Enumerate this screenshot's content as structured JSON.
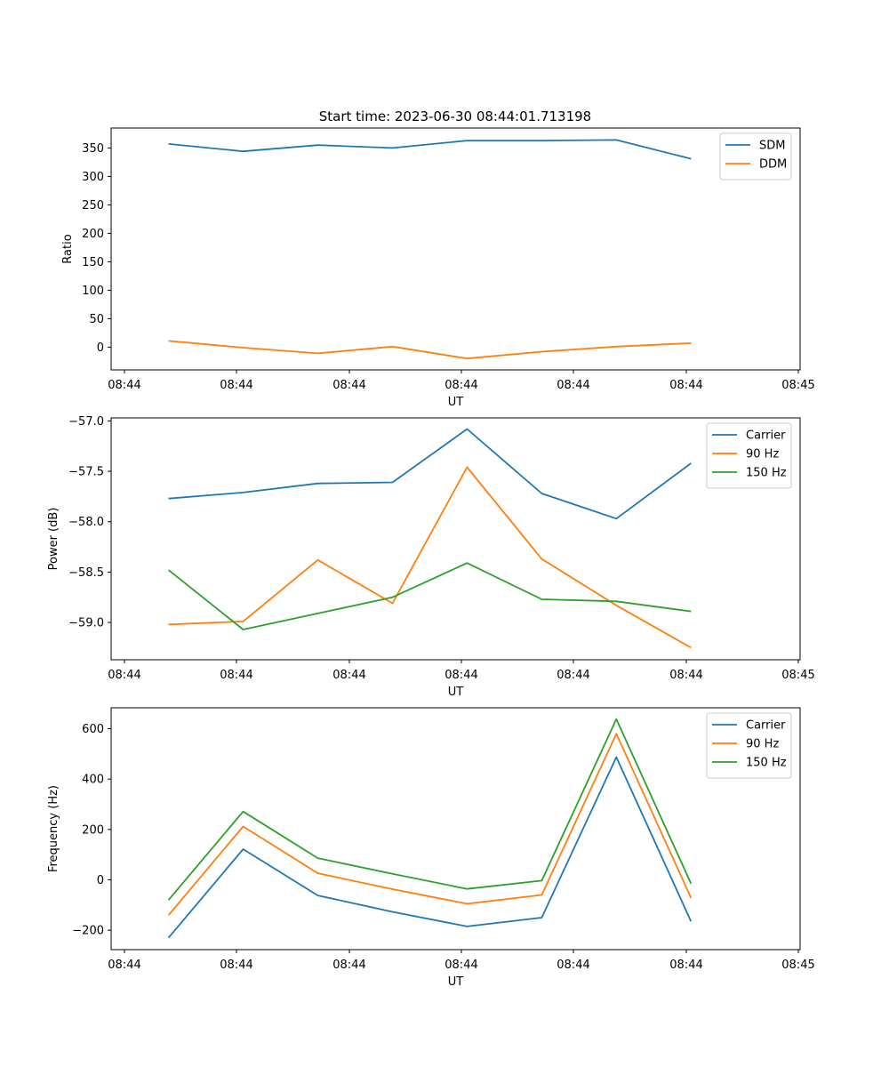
{
  "figure_title": "Start time: 2023-06-30 08:44:01.713198",
  "chart_data": [
    {
      "type": "line",
      "title": "Start time: 2023-06-30 08:44:01.713198",
      "xlabel": "UT",
      "ylabel": "Ratio",
      "x_tick_labels": [
        "08:44",
        "08:44",
        "08:44",
        "08:44",
        "08:44",
        "08:44",
        "08:44",
        "08:45"
      ],
      "y_ticks": [
        0,
        50,
        100,
        150,
        200,
        250,
        300,
        350
      ],
      "ylim": [
        -40,
        385
      ],
      "legend_position": "top-right",
      "grid": false,
      "x_point_positions": [
        0.5,
        1.15,
        1.8,
        2.45,
        3.1,
        3.75,
        4.4,
        5.05
      ],
      "x_range": [
        0,
        6
      ],
      "series": [
        {
          "name": "SDM",
          "color": "#1f77b4",
          "values": [
            357,
            344,
            355,
            350,
            363,
            363,
            364,
            331
          ]
        },
        {
          "name": "DDM",
          "color": "#ff7f0e",
          "values": [
            11,
            -1,
            -11,
            1,
            -20,
            -8,
            1,
            7
          ]
        }
      ]
    },
    {
      "type": "line",
      "title": "",
      "xlabel": "UT",
      "ylabel": "Power (dB)",
      "x_tick_labels": [
        "08:44",
        "08:44",
        "08:44",
        "08:44",
        "08:44",
        "08:44",
        "08:44",
        "08:45"
      ],
      "y_ticks": [
        -59.0,
        -58.5,
        -58.0,
        -57.5,
        -57.0
      ],
      "y_tick_labels": [
        "−59.0",
        "−58.5",
        "−58.0",
        "−57.5",
        "−57.0"
      ],
      "ylim": [
        -59.37,
        -56.97
      ],
      "legend_position": "top-right",
      "grid": false,
      "x_point_positions": [
        0.5,
        1.15,
        1.8,
        2.45,
        3.1,
        3.75,
        4.4,
        5.05
      ],
      "x_range": [
        0,
        6
      ],
      "series": [
        {
          "name": "Carrier",
          "color": "#1f77b4",
          "values": [
            -57.77,
            -57.71,
            -57.62,
            -57.61,
            -57.08,
            -57.72,
            -57.97,
            -57.42
          ]
        },
        {
          "name": "90 Hz",
          "color": "#ff7f0e",
          "values": [
            -59.02,
            -58.99,
            -58.38,
            -58.81,
            -57.46,
            -58.37,
            -58.83,
            -59.25
          ]
        },
        {
          "name": "150 Hz",
          "color": "#2ca02c",
          "values": [
            -58.48,
            -59.07,
            -58.91,
            -58.75,
            -58.41,
            -58.77,
            -58.79,
            -58.89
          ]
        }
      ]
    },
    {
      "type": "line",
      "title": "",
      "xlabel": "UT",
      "ylabel": "Frequency (Hz)",
      "x_tick_labels": [
        "08:44",
        "08:44",
        "08:44",
        "08:44",
        "08:44",
        "08:44",
        "08:44",
        "08:45"
      ],
      "y_ticks": [
        -200,
        0,
        200,
        400,
        600
      ],
      "y_tick_labels": [
        "−200",
        "0",
        "200",
        "400",
        "600"
      ],
      "ylim": [
        -277,
        683
      ],
      "legend_position": "top-right",
      "grid": false,
      "x_point_positions": [
        0.5,
        1.15,
        1.8,
        2.45,
        3.1,
        3.75,
        4.4,
        5.05
      ],
      "x_range": [
        0,
        6
      ],
      "series": [
        {
          "name": "Carrier",
          "color": "#1f77b4",
          "values": [
            -230,
            122,
            -62,
            -127,
            -185,
            -150,
            487,
            -165
          ]
        },
        {
          "name": "90 Hz",
          "color": "#ff7f0e",
          "values": [
            -140,
            212,
            26,
            -37,
            -95,
            -60,
            580,
            -72
          ]
        },
        {
          "name": "150 Hz",
          "color": "#2ca02c",
          "values": [
            -80,
            271,
            86,
            24,
            -36,
            -3,
            638,
            -15
          ]
        }
      ]
    }
  ]
}
